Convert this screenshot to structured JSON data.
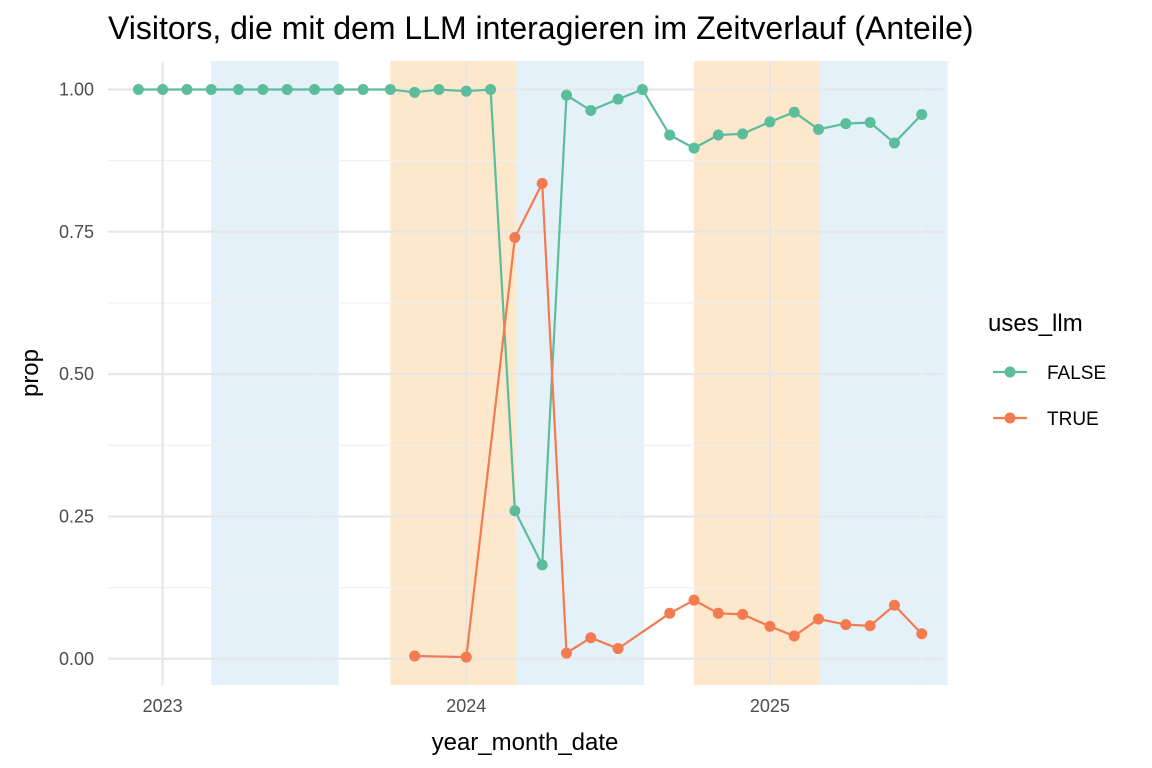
{
  "chart_data": {
    "type": "line",
    "title": "Visitors, die mit dem LLM interagieren im Zeitverlauf (Anteile)",
    "xlabel": "year_month_date",
    "ylabel": "prop",
    "xlim": [
      2022.82,
      2025.57
    ],
    "ylim": [
      -0.046,
      1.05
    ],
    "x_ticks": [
      2023,
      2024,
      2025
    ],
    "x_tick_labels": [
      "2023",
      "2024",
      "2025"
    ],
    "y_ticks": [
      0,
      0.25,
      0.5,
      0.75,
      1
    ],
    "y_tick_labels": [
      "0.00",
      "0.25",
      "0.50",
      "0.75",
      "1.00"
    ],
    "legend": {
      "title": "uses_llm",
      "position": "right",
      "entries": [
        "FALSE",
        "TRUE"
      ]
    },
    "shaded_periods": [
      {
        "start": 2023.16,
        "end": 2023.58,
        "color": "#e4f1f9"
      },
      {
        "start": 2023.75,
        "end": 2024.165,
        "color": "#fde8cc"
      },
      {
        "start": 2024.165,
        "end": 2024.585,
        "color": "#e4f1f9"
      },
      {
        "start": 2024.75,
        "end": 2025.165,
        "color": "#fde8cc"
      },
      {
        "start": 2025.165,
        "end": 2025.585,
        "color": "#e4f1f9"
      }
    ],
    "series": [
      {
        "name": "FALSE",
        "color": "#5bbd9c",
        "points": [
          [
            2022.92,
            1.0
          ],
          [
            2023.0,
            1.0
          ],
          [
            2023.08,
            1.0
          ],
          [
            2023.16,
            1.0
          ],
          [
            2023.25,
            1.0
          ],
          [
            2023.33,
            1.0
          ],
          [
            2023.41,
            1.0
          ],
          [
            2023.5,
            1.0
          ],
          [
            2023.58,
            1.0
          ],
          [
            2023.66,
            1.0
          ],
          [
            2023.75,
            1.0
          ],
          [
            2023.83,
            0.995
          ],
          [
            2023.91,
            1.0
          ],
          [
            2024.0,
            0.997
          ],
          [
            2024.08,
            1.0
          ],
          [
            2024.16,
            0.26
          ],
          [
            2024.25,
            0.165
          ],
          [
            2024.33,
            0.99
          ],
          [
            2024.41,
            0.963
          ],
          [
            2024.5,
            0.983
          ],
          [
            2024.58,
            1.0
          ],
          [
            2024.67,
            0.92
          ],
          [
            2024.75,
            0.897
          ],
          [
            2024.83,
            0.92
          ],
          [
            2024.91,
            0.922
          ],
          [
            2025.0,
            0.943
          ],
          [
            2025.08,
            0.96
          ],
          [
            2025.16,
            0.93
          ],
          [
            2025.25,
            0.94
          ],
          [
            2025.33,
            0.942
          ],
          [
            2025.41,
            0.906
          ],
          [
            2025.5,
            0.956
          ]
        ]
      },
      {
        "name": "TRUE",
        "color": "#f47a50",
        "points": [
          [
            2023.83,
            0.005
          ],
          [
            2024.0,
            0.003
          ],
          [
            2024.16,
            0.74
          ],
          [
            2024.25,
            0.835
          ],
          [
            2024.33,
            0.01
          ],
          [
            2024.41,
            0.037
          ],
          [
            2024.5,
            0.018
          ],
          [
            2024.67,
            0.08
          ],
          [
            2024.75,
            0.103
          ],
          [
            2024.83,
            0.08
          ],
          [
            2024.91,
            0.078
          ],
          [
            2025.0,
            0.057
          ],
          [
            2025.08,
            0.04
          ],
          [
            2025.16,
            0.07
          ],
          [
            2025.25,
            0.06
          ],
          [
            2025.33,
            0.058
          ],
          [
            2025.41,
            0.094
          ],
          [
            2025.5,
            0.044
          ]
        ]
      }
    ]
  }
}
